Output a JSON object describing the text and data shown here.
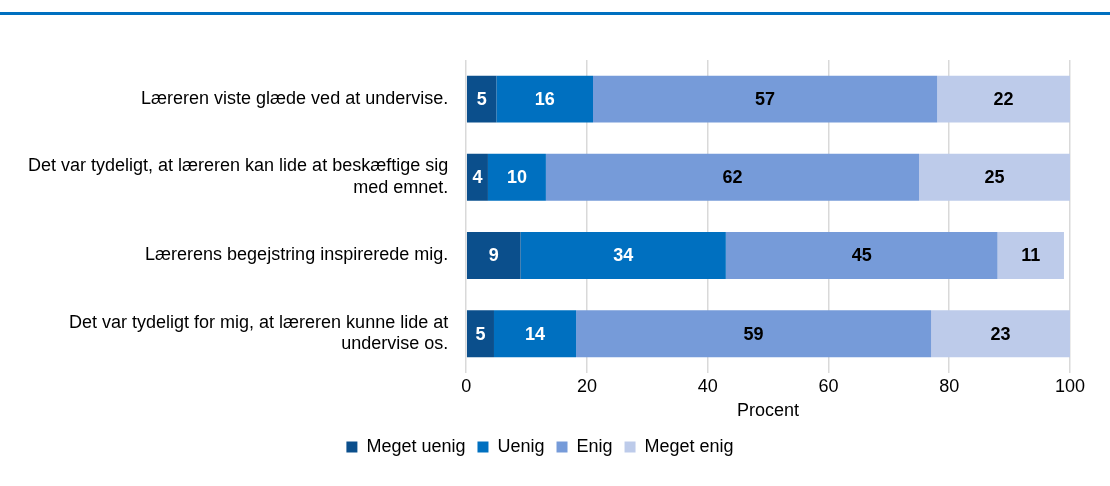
{
  "chart_data": {
    "type": "bar",
    "orientation": "horizontal",
    "stacked": true,
    "categories": [
      "Læreren viste glæde ved at undervise.",
      "Det var tydeligt, at læreren kan lide at beskæftige sig med emnet.",
      "Lærerens begejstring inspirerede mig.",
      "Det var tydeligt for mig, at læreren kunne lide at undervise os."
    ],
    "series": [
      {
        "name": "Meget uenig",
        "color": "#0b4f8c",
        "values": [
          5,
          3.6,
          9,
          4.6
        ],
        "value_labels": [
          "5",
          "4",
          "9",
          "5"
        ]
      },
      {
        "name": "Uenig",
        "color": "#0070c0",
        "values": [
          16,
          9.6,
          34,
          13.6
        ],
        "value_labels": [
          "16",
          "10",
          "34",
          "14"
        ]
      },
      {
        "name": "Enig",
        "color": "#769bd9",
        "values": [
          57,
          61.8,
          45,
          58.8
        ],
        "value_labels": [
          "57",
          "62",
          "45",
          "59"
        ]
      },
      {
        "name": "Meget enig",
        "color": "#bdcbea",
        "values": [
          22,
          25,
          11,
          23
        ],
        "value_labels": [
          "22",
          "25",
          "11",
          "23"
        ]
      }
    ],
    "xlabel": "Procent",
    "xlim": [
      0,
      100
    ],
    "xticks": [
      0,
      20,
      40,
      60,
      80,
      100
    ],
    "grid": "x",
    "legend": "bottom"
  }
}
